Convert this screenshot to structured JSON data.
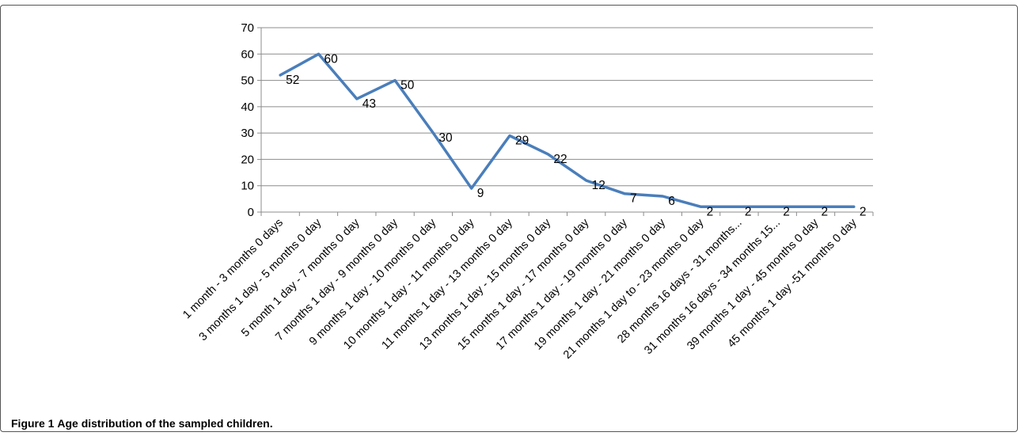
{
  "figure": {
    "label": "Figure 1",
    "caption": "Age distribution of the sampled children."
  },
  "colors": {
    "line": "#4a7ebb",
    "grid": "#8c8c8c",
    "axis": "#8c8c8c",
    "text": "#000000",
    "frame": "#555555"
  },
  "chart_data": {
    "type": "line",
    "title": "",
    "xlabel": "",
    "ylabel": "",
    "ylim": [
      0,
      70
    ],
    "yticks": [
      0,
      10,
      20,
      30,
      40,
      50,
      60,
      70
    ],
    "grid": "horizontal",
    "legend": "none",
    "categories": [
      "1 month - 3 months 0 days",
      "3 months 1 day - 5 months 0 day",
      "5 month 1 day - 7 months 0 day",
      "7 months 1 day - 9 months 0 day",
      "9 months 1 day - 10 months 0 day",
      "10 months 1 day - 11 months 0 day",
      "11 months 1 day - 13 months 0 day",
      "13 months 1 day - 15 months 0 day",
      "15 months 1 day - 17 months 0 day",
      "17 months 1 day - 19 months 0 day",
      "19 months 1 day - 21 months 0 day",
      "21 months 1 day to - 23 months 0 day",
      "28 months 16 days - 31 months...",
      "31 months 16 days - 34 months 15...",
      "39 months 1 day - 45 months 0 day",
      "45 months 1 day -51 months 0 day"
    ],
    "series": [
      {
        "values": [
          52,
          60,
          43,
          50,
          30,
          9,
          29,
          22,
          12,
          7,
          6,
          2,
          2,
          2,
          2,
          2
        ]
      }
    ],
    "data_labels": [
      "52",
      "60",
      "43",
      "50",
      "30",
      "9",
      "29",
      "22",
      "12",
      "7",
      "6",
      "2",
      "2",
      "2",
      "2",
      "2"
    ]
  }
}
